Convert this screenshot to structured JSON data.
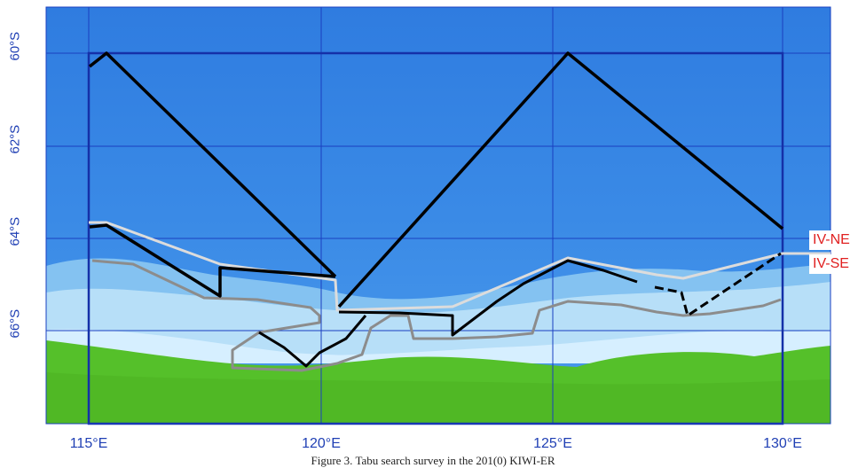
{
  "map": {
    "lat_labels": [
      "60°S",
      "62°S",
      "64°S",
      "66°S"
    ],
    "lon_labels": [
      "115°E",
      "120°E",
      "125°E",
      "130°E"
    ],
    "region_labels": {
      "ne": "IV-NE",
      "se": "IV-SE"
    },
    "colors": {
      "ocean": "#2f7fe0",
      "shelf": "#a9d8f5",
      "land": "#55c02a",
      "grid": "#1a3fc0",
      "track": "#000000",
      "ne_boundary": "#dcdcdc",
      "se_boundary": "#8c8c8c",
      "label_text": "#e02020"
    }
  },
  "caption": "Figure 3. Tabu search survey in the 201(0) KIWI-ER"
}
